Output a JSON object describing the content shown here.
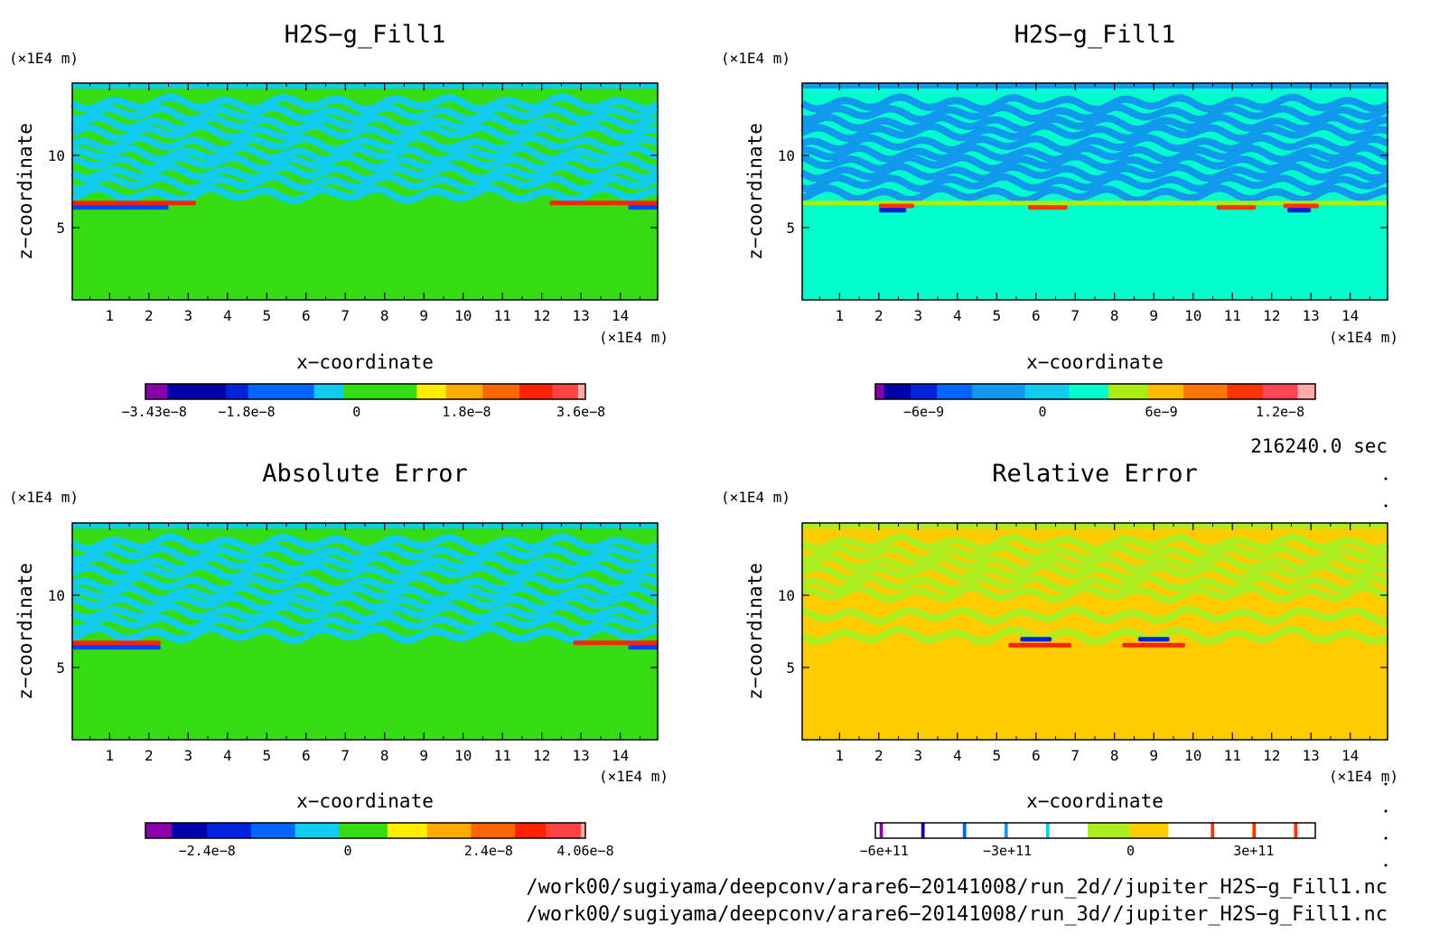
{
  "chart_data": [
    {
      "type": "heatmap",
      "title": "H2S−g_Fill1",
      "xlabel": "x−coordinate",
      "ylabel": "z−coordinate",
      "x_unit": "(×1E4 m)",
      "y_unit": "(×1E4 m)",
      "x_ticks": [
        "1",
        "2",
        "3",
        "4",
        "5",
        "6",
        "7",
        "8",
        "9",
        "10",
        "11",
        "12",
        "13",
        "14"
      ],
      "y_ticks": [
        "10",
        "5"
      ],
      "xlim": [
        0.05,
        14.95
      ],
      "ylim": [
        0,
        15
      ],
      "background_value": 0,
      "background_color": "#33dd11",
      "bands": [
        {
          "z": 13.6,
          "value": -0.2,
          "color": "#11ccee"
        },
        {
          "z": 12.9,
          "value": -0.2,
          "color": "#11ccee"
        },
        {
          "z": 12.2,
          "value": -0.2,
          "color": "#11ccee"
        },
        {
          "z": 11.6,
          "value": -0.2,
          "color": "#11ccee"
        },
        {
          "z": 10.8,
          "value": -0.2,
          "color": "#11ccee"
        },
        {
          "z": 10.1,
          "value": -0.2,
          "color": "#11ccee"
        },
        {
          "z": 9.5,
          "value": -0.2,
          "color": "#11ccee"
        },
        {
          "z": 8.8,
          "value": -0.2,
          "color": "#11ccee"
        },
        {
          "z": 8.1,
          "value": -0.2,
          "color": "#11ccee"
        },
        {
          "z": 7.3,
          "value": -0.2,
          "color": "#11ccee"
        }
      ],
      "features": [
        {
          "x": [
            0.05,
            3.2
          ],
          "z": 6.7,
          "color": "#ff2200",
          "label": "max"
        },
        {
          "x": [
            0.05,
            2.5
          ],
          "z": 6.4,
          "color": "#0044ff",
          "label": "min"
        },
        {
          "x": [
            12.2,
            14.95
          ],
          "z": 6.7,
          "color": "#ff2200",
          "label": "max"
        },
        {
          "x": [
            14.2,
            14.95
          ],
          "z": 6.4,
          "color": "#0044ff",
          "label": "min"
        }
      ],
      "colorbar": {
        "colors": [
          "#8800aa",
          "#0000aa",
          "#0022dd",
          "#0066ff",
          "#11ccee",
          "#33dd11",
          "#ffee00",
          "#ffaa00",
          "#ff6600",
          "#ff2200",
          "#ff4444",
          "#ffaaaa"
        ],
        "widths": [
          0.06,
          0.16,
          0.06,
          0.18,
          0.08,
          0.2,
          0.08,
          0.1,
          0.1,
          0.09,
          0.07,
          0.02
        ],
        "labels": [
          "−3.43e−8",
          "−1.8e−8",
          "0",
          "1.8e−8",
          "3.6e−8"
        ],
        "label_positions": [
          0.02,
          0.23,
          0.48,
          0.73,
          0.99
        ]
      }
    },
    {
      "type": "heatmap",
      "title": "H2S−g_Fill1",
      "xlabel": "x−coordinate",
      "ylabel": "z−coordinate",
      "x_unit": "(×1E4 m)",
      "y_unit": "(×1E4 m)",
      "x_ticks": [
        "1",
        "2",
        "3",
        "4",
        "5",
        "6",
        "7",
        "8",
        "9",
        "10",
        "11",
        "12",
        "13",
        "14"
      ],
      "y_ticks": [
        "10",
        "5"
      ],
      "xlim": [
        0.05,
        14.95
      ],
      "ylim": [
        0,
        15
      ],
      "background_value": 0,
      "background_color": "#00ffcc",
      "bands": [
        {
          "z": 13.6,
          "value": -0.2,
          "color": "#1199ee"
        },
        {
          "z": 12.9,
          "value": -0.2,
          "color": "#1199ee"
        },
        {
          "z": 12.2,
          "value": -0.2,
          "color": "#1199ee"
        },
        {
          "z": 11.6,
          "value": -0.2,
          "color": "#1199ee"
        },
        {
          "z": 10.8,
          "value": -0.2,
          "color": "#1199ee"
        },
        {
          "z": 10.1,
          "value": -0.2,
          "color": "#1199ee"
        },
        {
          "z": 9.5,
          "value": -0.2,
          "color": "#1199ee"
        },
        {
          "z": 8.8,
          "value": -0.2,
          "color": "#1199ee"
        },
        {
          "z": 8.1,
          "value": -0.2,
          "color": "#1199ee"
        },
        {
          "z": 7.3,
          "value": -0.2,
          "color": "#1199ee"
        }
      ],
      "features": [
        {
          "x": [
            0.05,
            14.95
          ],
          "z": 6.7,
          "color": "#aaee11",
          "label": "band"
        },
        {
          "x": [
            2.0,
            2.9
          ],
          "z": 6.5,
          "color": "#ff3300",
          "label": "max"
        },
        {
          "x": [
            2.0,
            2.7
          ],
          "z": 6.2,
          "color": "#0022dd",
          "label": "min"
        },
        {
          "x": [
            5.8,
            6.8
          ],
          "z": 6.4,
          "color": "#ff3300",
          "label": "max"
        },
        {
          "x": [
            10.6,
            11.6
          ],
          "z": 6.4,
          "color": "#ff3300",
          "label": "max"
        },
        {
          "x": [
            12.3,
            13.2
          ],
          "z": 6.5,
          "color": "#ff3300",
          "label": "max"
        },
        {
          "x": [
            12.4,
            13.0
          ],
          "z": 6.2,
          "color": "#0022dd",
          "label": "min"
        }
      ],
      "colorbar": {
        "colors": [
          "#8800aa",
          "#0000aa",
          "#0022dd",
          "#0066ff",
          "#1199ee",
          "#11ccee",
          "#00ffcc",
          "#aaee11",
          "#ffbb00",
          "#ff7700",
          "#ff3300",
          "#ff4455",
          "#ffaaaa"
        ],
        "widths": [
          0.02,
          0.06,
          0.06,
          0.08,
          0.12,
          0.1,
          0.09,
          0.09,
          0.08,
          0.1,
          0.08,
          0.08,
          0.04
        ],
        "labels": [
          "−6e−9",
          "0",
          "6e−9",
          "1.2e−8"
        ],
        "label_positions": [
          0.11,
          0.38,
          0.65,
          0.92
        ]
      }
    },
    {
      "type": "heatmap",
      "title": "Absolute Error",
      "xlabel": "x−coordinate",
      "ylabel": "z−coordinate",
      "x_unit": "(×1E4 m)",
      "y_unit": "(×1E4 m)",
      "x_ticks": [
        "1",
        "2",
        "3",
        "4",
        "5",
        "6",
        "7",
        "8",
        "9",
        "10",
        "11",
        "12",
        "13",
        "14"
      ],
      "y_ticks": [
        "10",
        "5"
      ],
      "xlim": [
        0.05,
        14.95
      ],
      "ylim": [
        0,
        15
      ],
      "background_value": 0,
      "background_color": "#33dd11",
      "bands": [
        {
          "z": 13.6,
          "value": -0.2,
          "color": "#11ccee"
        },
        {
          "z": 12.9,
          "value": -0.2,
          "color": "#11ccee"
        },
        {
          "z": 12.2,
          "value": -0.2,
          "color": "#11ccee"
        },
        {
          "z": 11.6,
          "value": -0.2,
          "color": "#11ccee"
        },
        {
          "z": 10.8,
          "value": -0.2,
          "color": "#11ccee"
        },
        {
          "z": 10.1,
          "value": -0.2,
          "color": "#11ccee"
        },
        {
          "z": 9.5,
          "value": -0.2,
          "color": "#11ccee"
        },
        {
          "z": 8.8,
          "value": -0.2,
          "color": "#11ccee"
        },
        {
          "z": 8.1,
          "value": -0.2,
          "color": "#11ccee"
        },
        {
          "z": 7.3,
          "value": -0.2,
          "color": "#11ccee"
        }
      ],
      "features": [
        {
          "x": [
            0.05,
            2.3
          ],
          "z": 6.7,
          "color": "#ff2200",
          "label": "max"
        },
        {
          "x": [
            0.05,
            2.3
          ],
          "z": 6.4,
          "color": "#0044ff",
          "label": "min"
        },
        {
          "x": [
            12.8,
            14.95
          ],
          "z": 6.7,
          "color": "#ff2200",
          "label": "max"
        },
        {
          "x": [
            14.2,
            14.95
          ],
          "z": 6.4,
          "color": "#0044ff",
          "label": "min"
        }
      ],
      "colorbar": {
        "colors": [
          "#8800aa",
          "#0000aa",
          "#0022dd",
          "#0066ff",
          "#11ccee",
          "#33dd11",
          "#ffee00",
          "#ffaa00",
          "#ff6600",
          "#ff2200",
          "#ff4444",
          "#ffaaaa"
        ],
        "widths": [
          0.06,
          0.08,
          0.1,
          0.1,
          0.1,
          0.11,
          0.09,
          0.1,
          0.1,
          0.07,
          0.08,
          0.01
        ],
        "labels": [
          "−2.4e−8",
          "0",
          "2.4e−8",
          "4.06e−8"
        ],
        "label_positions": [
          0.14,
          0.46,
          0.78,
          1.0
        ]
      }
    },
    {
      "type": "heatmap",
      "title": "Relative Error",
      "xlabel": "x−coordinate",
      "ylabel": "z−coordinate",
      "x_unit": "(×1E4 m)",
      "y_unit": "(×1E4 m)",
      "x_ticks": [
        "1",
        "2",
        "3",
        "4",
        "5",
        "6",
        "7",
        "8",
        "9",
        "10",
        "11",
        "12",
        "13",
        "14"
      ],
      "y_ticks": [
        "10",
        "5"
      ],
      "xlim": [
        0.05,
        14.95
      ],
      "ylim": [
        0,
        15
      ],
      "background_value": 0,
      "background_color": "#ffcc00",
      "bands": [
        {
          "z": 13.6,
          "value": -0.1,
          "color": "#aaee22"
        },
        {
          "z": 12.9,
          "value": -0.1,
          "color": "#aaee22"
        },
        {
          "z": 12.2,
          "value": -0.1,
          "color": "#aaee22"
        },
        {
          "z": 11.6,
          "value": -0.1,
          "color": "#aaee22"
        },
        {
          "z": 10.8,
          "value": -0.1,
          "color": "#aaee22"
        },
        {
          "z": 10.1,
          "value": -0.1,
          "color": "#aaee22"
        },
        {
          "z": 8.6,
          "value": -0.1,
          "color": "#aaee22"
        },
        {
          "z": 7.2,
          "value": -0.1,
          "color": "#aaee22"
        }
      ],
      "features": [
        {
          "x": [
            5.3,
            6.9
          ],
          "z": 6.55,
          "color": "#ff2200",
          "label": "max"
        },
        {
          "x": [
            5.6,
            6.4
          ],
          "z": 6.95,
          "color": "#0022dd",
          "label": "min"
        },
        {
          "x": [
            8.2,
            9.8
          ],
          "z": 6.55,
          "color": "#ff2200",
          "label": "max"
        },
        {
          "x": [
            8.6,
            9.4
          ],
          "z": 6.95,
          "color": "#0022dd",
          "label": "min"
        }
      ],
      "colorbar": {
        "colors": [
          "#ffffff",
          "#8800aa",
          "#ffffff",
          "#0000aa",
          "#ffffff",
          "#0066ff",
          "#ffffff",
          "#1199ee",
          "#ffffff",
          "#11ccee",
          "#ffffff",
          "#aaee22",
          "#ffcc00",
          "#ffffff",
          "#ff3300",
          "#ffffff",
          "#ff3300",
          "#ffffff",
          "#ff3300",
          "#ffffff"
        ],
        "widths": [
          0.01,
          0.008,
          0.09,
          0.008,
          0.09,
          0.008,
          0.09,
          0.008,
          0.09,
          0.008,
          0.09,
          0.1,
          0.09,
          0.1,
          0.008,
          0.09,
          0.008,
          0.09,
          0.008,
          0.042
        ],
        "labels": [
          "−6e+11",
          "−3e+11",
          "0",
          "3e+11"
        ],
        "label_positions": [
          0.02,
          0.3,
          0.58,
          0.86
        ]
      }
    }
  ],
  "timestamp": "216240.0 sec",
  "file_paths": [
    "/work00/sugiyama/deepconv/arare6−20141008/run_2d//jupiter_H2S−g_Fill1.nc",
    "/work00/sugiyama/deepconv/arare6−20141008/run_3d//jupiter_H2S−g_Fill1.nc"
  ]
}
